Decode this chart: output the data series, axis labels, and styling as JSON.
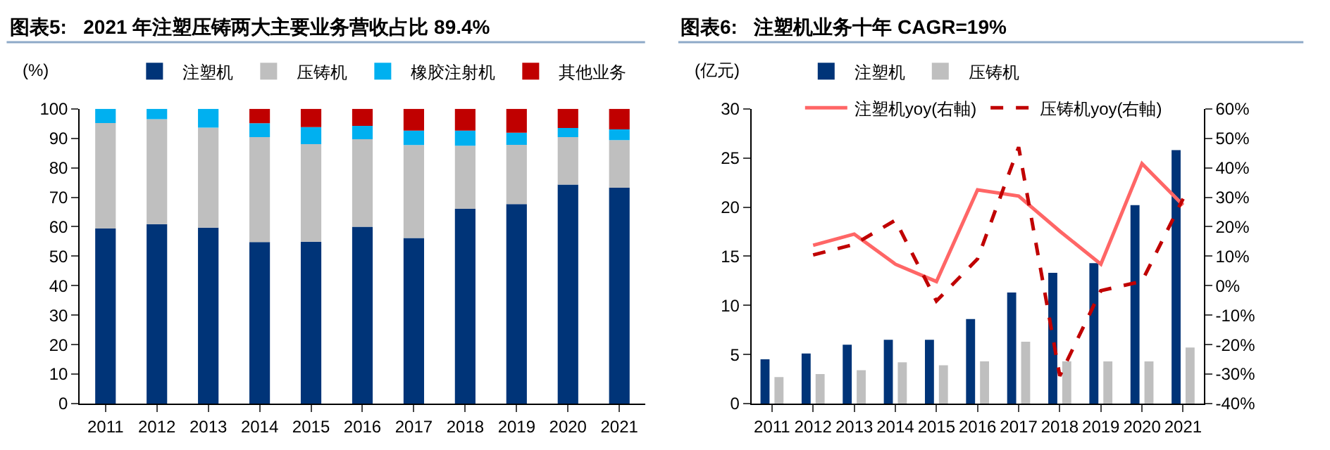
{
  "chart_data": [
    {
      "type": "bar",
      "title": "图表5:   2021 年注塑压铸两大主要业务营收占比 89.4%",
      "ylabel": "(%)",
      "stacked": true,
      "legend": "top",
      "categories": [
        "2011",
        "2012",
        "2013",
        "2014",
        "2015",
        "2016",
        "2017",
        "2018",
        "2019",
        "2020",
        "2021"
      ],
      "ylim": [
        0,
        100
      ],
      "yticks": [
        0,
        10,
        20,
        30,
        40,
        50,
        60,
        70,
        80,
        90,
        100
      ],
      "series": [
        {
          "name": "注塑机",
          "color": "#003478",
          "values": [
            59.4,
            60.9,
            59.7,
            54.8,
            54.9,
            60.0,
            56.2,
            66.1,
            67.7,
            74.3,
            73.2
          ]
        },
        {
          "name": "压铸机",
          "color": "#bfbfbf",
          "values": [
            35.8,
            35.6,
            33.9,
            35.6,
            33.1,
            29.7,
            31.5,
            21.4,
            20.1,
            16.1,
            16.2
          ]
        },
        {
          "name": "橡胶注射机",
          "color": "#00b0f0",
          "values": [
            4.8,
            3.5,
            6.4,
            4.7,
            5.8,
            4.5,
            4.9,
            5.1,
            4.1,
            3.1,
            3.6
          ]
        },
        {
          "name": "其他业务",
          "color": "#c00000",
          "values": [
            null,
            null,
            null,
            4.9,
            6.2,
            5.8,
            7.4,
            7.4,
            8.1,
            6.5,
            7.0
          ]
        }
      ]
    },
    {
      "type": "bar",
      "title": "图表6:   注塑机业务十年 CAGR=19%",
      "ylabel": "(亿元)",
      "legend": "top",
      "categories": [
        "2011",
        "2012",
        "2013",
        "2014",
        "2015",
        "2016",
        "2017",
        "2018",
        "2019",
        "2020",
        "2021"
      ],
      "ylim": [
        0,
        30
      ],
      "yticks": [
        0,
        5,
        10,
        15,
        20,
        25,
        30
      ],
      "y2lim": [
        -40,
        60
      ],
      "y2ticks": [
        {
          "value": -40,
          "label": "-40%"
        },
        {
          "value": -30,
          "label": "-30%"
        },
        {
          "value": -20,
          "label": "-20%"
        },
        {
          "value": -10,
          "label": "-10%"
        },
        {
          "value": 0,
          "label": "0%"
        },
        {
          "value": 10,
          "label": "10%"
        },
        {
          "value": 20,
          "label": "20%"
        },
        {
          "value": 30,
          "label": "30%"
        },
        {
          "value": 40,
          "label": "40%"
        },
        {
          "value": 50,
          "label": "50%"
        },
        {
          "value": 60,
          "label": "60%"
        }
      ],
      "series": [
        {
          "name": "注塑机",
          "color": "#003478",
          "values": [
            4.5,
            5.1,
            6.0,
            6.5,
            6.5,
            8.6,
            11.3,
            13.3,
            14.3,
            20.2,
            25.8
          ]
        },
        {
          "name": "压铸机",
          "color": "#bfbfbf",
          "values": [
            2.7,
            3.0,
            3.4,
            4.2,
            3.9,
            4.3,
            6.3,
            4.3,
            4.3,
            4.3,
            5.7
          ]
        },
        {
          "name": "注塑机yoy(右軸)",
          "type": "line",
          "axis": "y2",
          "line_style": "solid",
          "color": "#ff6666",
          "values": [
            null,
            13.7,
            17.5,
            7.3,
            1.4,
            32.5,
            30.4,
            18.5,
            7.3,
            41.4,
            27.3
          ]
        },
        {
          "name": "压铸机yoy(右軸)",
          "type": "line",
          "axis": "y2",
          "line_style": "dashed",
          "color": "#c00000",
          "values": [
            null,
            10.4,
            14.0,
            22.2,
            -5.2,
            9.1,
            47.0,
            -30.6,
            -1.7,
            1.5,
            29.5
          ]
        }
      ]
    }
  ]
}
